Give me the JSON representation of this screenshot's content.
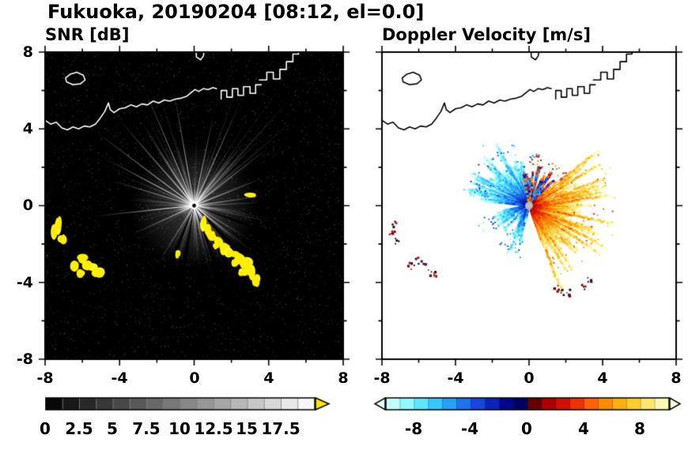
{
  "title": "Fukuoka, 20190204 [08:12, el=0.0]",
  "panels": {
    "snr": {
      "title": "SNR [dB]",
      "background": "#000000",
      "coast_color": "#ffffff"
    },
    "doppler": {
      "title": "Doppler Velocity [m/s]",
      "background": "#ffffff",
      "coast_color": "#000000"
    }
  },
  "axes": {
    "xlim": [
      -8,
      8
    ],
    "ylim": [
      -8,
      8
    ],
    "major_ticks": [
      -8,
      -4,
      0,
      4,
      8
    ],
    "minor_ticks": [
      -6,
      -2,
      2,
      6
    ],
    "x_tick_labels": [
      "-8",
      "-4",
      "0",
      "4",
      "8"
    ],
    "y_tick_labels": [
      "8",
      "4",
      "0",
      "-4",
      "-8"
    ]
  },
  "colorbars": {
    "snr": {
      "range": [
        0,
        20
      ],
      "tick_labels": [
        "0",
        "2.5",
        "5",
        "7.5",
        "10",
        "12.5",
        "15",
        "17.5"
      ],
      "tick_values": [
        0,
        2.5,
        5,
        7.5,
        10,
        12.5,
        15,
        17.5
      ],
      "segments": 16,
      "stops": [
        [
          0,
          "#000000"
        ],
        [
          1,
          "#ffffff"
        ]
      ],
      "over_arrow_color": "#ffe600"
    },
    "doppler": {
      "range": [
        -10,
        10
      ],
      "tick_labels": [
        "-8",
        "-4",
        "0",
        "4",
        "8"
      ],
      "tick_values": [
        -8,
        -4,
        0,
        4,
        8
      ],
      "segments": 20,
      "stops": [
        [
          0,
          "#e0ffff"
        ],
        [
          0.06,
          "#a0ffff"
        ],
        [
          0.13,
          "#58e4ff"
        ],
        [
          0.2,
          "#28b4ff"
        ],
        [
          0.27,
          "#1e78f0"
        ],
        [
          0.34,
          "#1438d8"
        ],
        [
          0.42,
          "#000890"
        ],
        [
          0.475,
          "#000060"
        ],
        [
          0.5,
          "#300000"
        ],
        [
          0.53,
          "#700000"
        ],
        [
          0.58,
          "#b40000"
        ],
        [
          0.65,
          "#e81800"
        ],
        [
          0.72,
          "#ff6000"
        ],
        [
          0.8,
          "#ffa000"
        ],
        [
          0.88,
          "#ffd030"
        ],
        [
          0.95,
          "#fff090"
        ],
        [
          1,
          "#ffffd8"
        ]
      ]
    }
  },
  "chart_data": {
    "type": "heatmap",
    "description": "Dual-panel weather radar PPI display (left: signal-to-noise ratio, right: Doppler velocity) centered on the radar site",
    "site": "Fukuoka",
    "date": "20190204",
    "time": "08:12",
    "elevation_deg": 0.0,
    "x_range_km": [
      -8,
      8
    ],
    "y_range_km": [
      -8,
      8
    ],
    "radar_center_km": [
      0,
      0
    ],
    "snr_scale": {
      "min_dB": 0,
      "max_dB": 20,
      "over_color": "yellow"
    },
    "velocity_scale": {
      "min_ms": -10,
      "max_ms": 10,
      "negative_colors": "cyan-blue",
      "positive_colors": "red-orange-yellow"
    },
    "features": {
      "coastline": [
        [
          -8,
          4.45
        ],
        [
          -7.7,
          4.25
        ],
        [
          -7.4,
          4.35
        ],
        [
          -7.1,
          4.05
        ],
        [
          -6.8,
          3.95
        ],
        [
          -6.5,
          4.1
        ],
        [
          -6.2,
          4.0
        ],
        [
          -5.9,
          4.15
        ],
        [
          -5.6,
          4.1
        ],
        [
          -5.3,
          4.25
        ],
        [
          -5.05,
          4.55
        ],
        [
          -4.8,
          4.9
        ],
        [
          -4.6,
          5.35
        ],
        [
          -4.5,
          5.0
        ],
        [
          -4.3,
          4.85
        ],
        [
          -4.0,
          5.05
        ],
        [
          -3.7,
          5.1
        ],
        [
          -3.4,
          5.25
        ],
        [
          -3.1,
          5.15
        ],
        [
          -2.8,
          5.3
        ],
        [
          -2.5,
          5.25
        ],
        [
          -2.2,
          5.45
        ],
        [
          -1.9,
          5.35
        ],
        [
          -1.6,
          5.5
        ],
        [
          -1.3,
          5.45
        ],
        [
          -1.0,
          5.55
        ],
        [
          -0.7,
          5.6
        ],
        [
          -0.4,
          5.7
        ],
        [
          -0.15,
          5.9
        ],
        [
          0.05,
          6.05
        ],
        [
          0.25,
          5.95
        ],
        [
          0.5,
          6.1
        ],
        [
          0.75,
          6.05
        ],
        [
          1.0,
          6.15
        ],
        [
          1.2,
          6.1
        ]
      ],
      "port_structures": [
        [
          [
            1.45,
            5.55
          ],
          [
            1.45,
            6.0
          ],
          [
            1.75,
            6.0
          ],
          [
            1.75,
            5.65
          ],
          [
            2.05,
            5.65
          ],
          [
            2.05,
            6.1
          ],
          [
            2.35,
            6.1
          ],
          [
            2.35,
            5.75
          ],
          [
            2.65,
            5.75
          ],
          [
            2.65,
            6.2
          ],
          [
            3.0,
            6.2
          ],
          [
            3.0,
            5.85
          ],
          [
            3.3,
            5.85
          ],
          [
            3.3,
            6.3
          ],
          [
            3.6,
            6.3
          ]
        ],
        [
          [
            3.5,
            6.55
          ],
          [
            3.9,
            6.55
          ],
          [
            3.9,
            6.95
          ],
          [
            4.25,
            6.95
          ],
          [
            4.25,
            6.6
          ],
          [
            4.6,
            6.6
          ],
          [
            4.6,
            7.1
          ],
          [
            4.95,
            7.1
          ],
          [
            4.95,
            7.5
          ],
          [
            5.3,
            7.5
          ],
          [
            5.3,
            7.9
          ],
          [
            5.6,
            7.9
          ],
          [
            5.6,
            8.2
          ]
        ]
      ],
      "island": [
        [
          -6.85,
          6.45
        ],
        [
          -6.5,
          6.3
        ],
        [
          -6.1,
          6.35
        ],
        [
          -5.85,
          6.55
        ],
        [
          -5.95,
          6.8
        ],
        [
          -6.3,
          6.95
        ],
        [
          -6.65,
          6.85
        ],
        [
          -6.9,
          6.65
        ]
      ],
      "top_inlet": [
        [
          0.1,
          8.2
        ],
        [
          0.12,
          7.75
        ],
        [
          0.35,
          7.6
        ],
        [
          0.5,
          7.8
        ],
        [
          0.55,
          8.2
        ]
      ],
      "snr_bright_rays": [
        [
          100,
          150
        ],
        [
          113,
          165
        ],
        [
          122,
          125
        ],
        [
          131,
          148
        ],
        [
          143,
          158
        ],
        [
          152,
          128
        ],
        [
          163,
          110
        ],
        [
          22,
          95
        ],
        [
          38,
          120
        ],
        [
          52,
          105
        ],
        [
          66,
          140
        ],
        [
          78,
          118
        ],
        [
          8,
          82
        ],
        [
          186,
          128
        ],
        [
          205,
          88
        ],
        [
          258,
          70
        ],
        [
          282,
          60
        ],
        [
          304,
          85
        ],
        [
          320,
          72
        ]
      ],
      "snr_dark_wedges": [
        [
          -100,
          5,
          135
        ],
        [
          -70,
          4,
          125
        ],
        [
          -46,
          4,
          130
        ],
        [
          -20,
          3,
          110
        ],
        [
          248,
          4,
          100
        ]
      ],
      "snr_clutter": [
        [
          0.5,
          -0.95,
          0.14,
          0.3
        ],
        [
          0.75,
          -1.3,
          0.18,
          0.28
        ],
        [
          1.0,
          -1.62,
          0.2,
          0.24
        ],
        [
          1.3,
          -1.92,
          0.18,
          0.22
        ],
        [
          1.62,
          -2.2,
          0.26,
          0.24
        ],
        [
          2.0,
          -2.5,
          0.3,
          0.22
        ],
        [
          2.4,
          -2.78,
          0.24,
          0.26
        ],
        [
          2.72,
          -3.1,
          0.3,
          0.28
        ],
        [
          3.05,
          -3.5,
          0.26,
          0.3
        ],
        [
          3.3,
          -3.88,
          0.2,
          0.3
        ],
        [
          2.15,
          -3.02,
          0.18,
          0.18
        ],
        [
          2.6,
          -3.45,
          0.2,
          0.18
        ],
        [
          1.17,
          -2.1,
          0.14,
          0.18
        ],
        [
          2.95,
          0.55,
          0.3,
          0.09
        ],
        [
          -0.9,
          -2.55,
          0.12,
          0.26
        ],
        [
          -7.3,
          -0.9,
          0.18,
          0.4
        ],
        [
          -7.45,
          -1.45,
          0.15,
          0.35
        ],
        [
          -7.1,
          -1.8,
          0.18,
          0.24
        ],
        [
          -6.0,
          -2.8,
          0.28,
          0.2
        ],
        [
          -5.6,
          -3.15,
          0.3,
          0.24
        ],
        [
          -5.15,
          -3.5,
          0.28,
          0.24
        ],
        [
          -6.45,
          -3.1,
          0.2,
          0.26
        ],
        [
          -6.1,
          -3.55,
          0.18,
          0.2
        ]
      ],
      "doppler_sectors": [
        {
          "a0": 100,
          "a1": 175,
          "rmax": 2.6,
          "spike": 3.6,
          "mode": "neg",
          "density": 1.0
        },
        {
          "a0": 38,
          "a1": 100,
          "rmax": 2.2,
          "spike": 2.6,
          "mode": "mixed",
          "density": 0.45
        },
        {
          "a0": -70,
          "a1": 38,
          "rmax": 3.0,
          "spike": 4.5,
          "mode": "pos",
          "density": 1.0
        },
        {
          "a0": 190,
          "a1": 262,
          "rmax": 2.0,
          "spike": 2.6,
          "mode": "neg",
          "density": 0.3
        }
      ],
      "doppler_clutter": [
        [
          -7.3,
          -0.95
        ],
        [
          -7.45,
          -1.5
        ],
        [
          -7.1,
          -1.85
        ],
        [
          -6.0,
          -2.85
        ],
        [
          -5.6,
          -3.2
        ],
        [
          -5.2,
          -3.55
        ],
        [
          -6.4,
          -3.15
        ],
        [
          1.55,
          -4.3
        ],
        [
          2.2,
          -4.55
        ],
        [
          2.95,
          -4.2
        ],
        [
          3.3,
          -3.9
        ],
        [
          1.9,
          -4.5
        ]
      ],
      "clutter_colors": [
        "#7f0000",
        "#d01010",
        "#1a1a70",
        "#151515"
      ]
    }
  }
}
